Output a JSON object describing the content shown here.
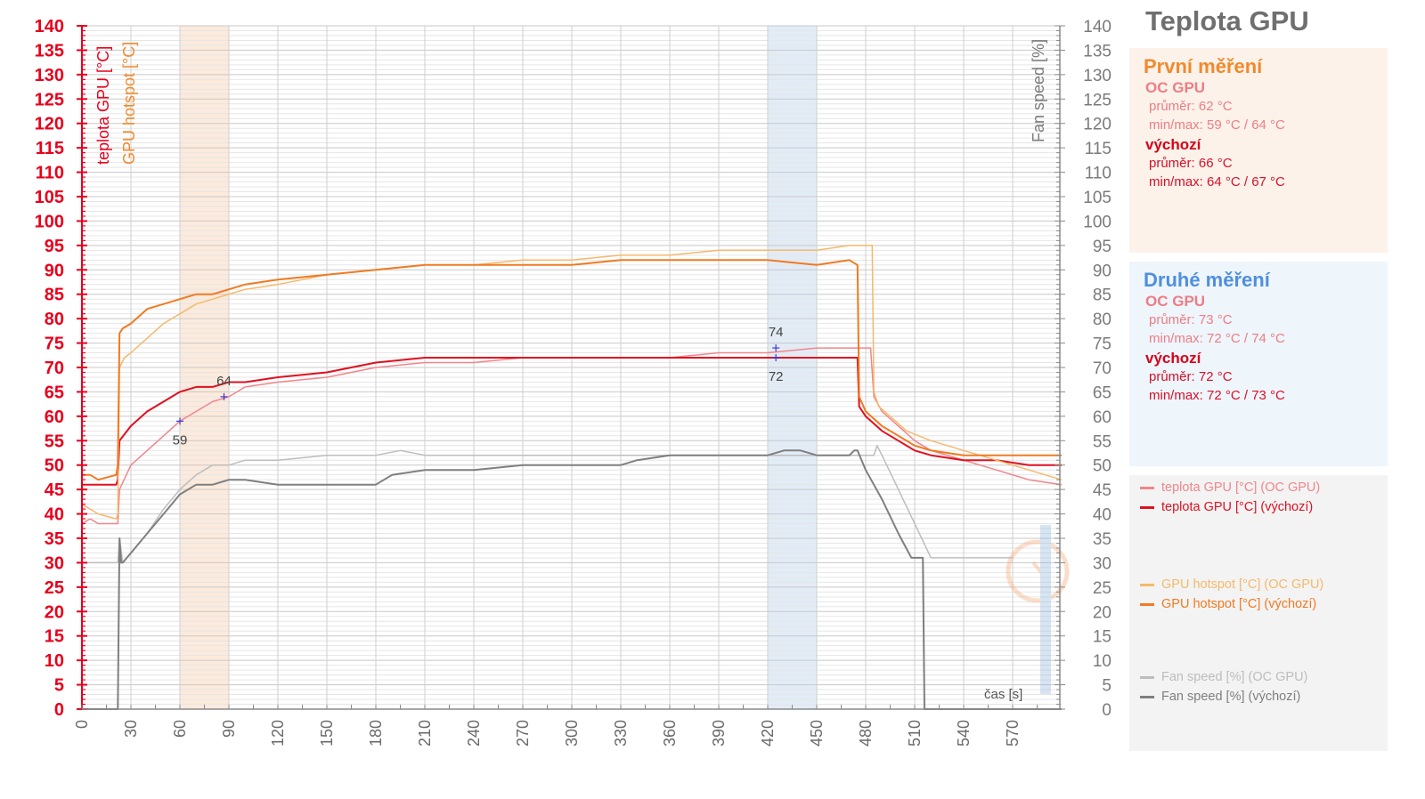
{
  "chart_data": {
    "type": "line",
    "title": "Teplota GPU",
    "xlabel": "čas [s]",
    "ylabel_left": [
      "teplota GPU [°C]",
      "GPU hotspot [°C]"
    ],
    "ylabel_right": "Fan speed [%]",
    "xlim": [
      0,
      600
    ],
    "ylim": [
      0,
      140
    ],
    "x_ticks": [
      0,
      30,
      60,
      90,
      120,
      150,
      180,
      210,
      240,
      270,
      300,
      330,
      360,
      390,
      420,
      450,
      480,
      510,
      540,
      570
    ],
    "y_ticks": [
      0,
      5,
      10,
      15,
      20,
      25,
      30,
      35,
      40,
      45,
      50,
      55,
      60,
      65,
      70,
      75,
      80,
      85,
      90,
      95,
      100,
      105,
      110,
      115,
      120,
      125,
      130,
      135,
      140
    ],
    "grid": true,
    "highlight_ranges": [
      {
        "name": "První měření",
        "x": [
          60,
          90
        ],
        "color": "#fbe6d6"
      },
      {
        "name": "Druhé měření",
        "x": [
          420,
          450
        ],
        "color": "#dde9f6"
      }
    ],
    "annotations": [
      {
        "x": 60,
        "y": 59,
        "text": "59"
      },
      {
        "x": 87,
        "y": 64,
        "text": "64"
      },
      {
        "x": 425,
        "y": 74,
        "text": "74"
      },
      {
        "x": 425,
        "y": 72,
        "text": "72"
      }
    ],
    "series": [
      {
        "name": "teplota GPU [°C] (OC GPU)",
        "color": "#f0868c",
        "width": 1.5,
        "x": [
          0,
          5,
          10,
          21,
          22,
          23,
          30,
          40,
          50,
          60,
          70,
          80,
          90,
          100,
          120,
          150,
          180,
          210,
          240,
          270,
          300,
          330,
          360,
          390,
          420,
          450,
          470,
          480,
          483,
          485,
          490,
          500,
          510,
          520,
          540,
          560,
          580,
          600
        ],
        "y": [
          38,
          39,
          38,
          38,
          38,
          45,
          50,
          53,
          56,
          59,
          61,
          63,
          64,
          66,
          67,
          68,
          70,
          71,
          71,
          72,
          72,
          72,
          72,
          73,
          73,
          74,
          74,
          74,
          74,
          64,
          61,
          58,
          55,
          53,
          51,
          49,
          47,
          46
        ]
      },
      {
        "name": "teplota GPU [°C] (výchozí)",
        "color": "#e01020",
        "width": 2,
        "x": [
          0,
          5,
          10,
          21,
          22,
          23,
          30,
          40,
          50,
          60,
          70,
          80,
          90,
          100,
          120,
          150,
          180,
          210,
          240,
          270,
          300,
          330,
          360,
          390,
          420,
          450,
          470,
          475,
          476,
          480,
          490,
          500,
          510,
          520,
          540,
          560,
          580,
          600
        ],
        "y": [
          46,
          46,
          46,
          46,
          47,
          55,
          58,
          61,
          63,
          65,
          66,
          66,
          67,
          67,
          68,
          69,
          71,
          72,
          72,
          72,
          72,
          72,
          72,
          72,
          72,
          72,
          72,
          72,
          62,
          60,
          57,
          55,
          53,
          52,
          51,
          51,
          50,
          50
        ]
      },
      {
        "name": "GPU hotspot [°C] (OC GPU)",
        "color": "#f5b96a",
        "width": 1.5,
        "x": [
          0,
          5,
          10,
          21,
          22,
          23,
          26,
          30,
          40,
          50,
          60,
          70,
          80,
          90,
          100,
          120,
          150,
          180,
          210,
          240,
          270,
          300,
          330,
          360,
          390,
          420,
          450,
          470,
          484,
          485,
          488,
          495,
          505,
          520,
          540,
          560,
          580,
          600
        ],
        "y": [
          42,
          41,
          40,
          39,
          40,
          70,
          72,
          73,
          76,
          79,
          81,
          83,
          84,
          85,
          86,
          87,
          89,
          90,
          91,
          91,
          92,
          92,
          93,
          93,
          94,
          94,
          94,
          95,
          95,
          65,
          62,
          60,
          57,
          55,
          53,
          51,
          49,
          47
        ]
      },
      {
        "name": "GPU hotspot [°C] (výchozí)",
        "color": "#f07a22",
        "width": 2,
        "x": [
          0,
          5,
          10,
          21,
          22,
          23,
          25,
          30,
          40,
          50,
          60,
          70,
          80,
          90,
          100,
          120,
          150,
          180,
          210,
          240,
          270,
          300,
          330,
          360,
          390,
          420,
          450,
          470,
          475,
          476,
          480,
          490,
          500,
          510,
          520,
          540,
          560,
          580,
          600
        ],
        "y": [
          48,
          48,
          47,
          48,
          50,
          77,
          78,
          79,
          82,
          83,
          84,
          85,
          85,
          86,
          87,
          88,
          89,
          90,
          91,
          91,
          91,
          91,
          92,
          92,
          92,
          92,
          91,
          92,
          91,
          64,
          61,
          58,
          56,
          54,
          53,
          52,
          52,
          52,
          52
        ]
      },
      {
        "name": "Fan speed [%] (OC GPU)",
        "color": "#bdbdbd",
        "width": 1.5,
        "x": [
          0,
          22,
          23,
          25,
          30,
          40,
          50,
          60,
          70,
          80,
          90,
          100,
          120,
          150,
          180,
          195,
          210,
          240,
          270,
          300,
          330,
          360,
          390,
          420,
          450,
          470,
          485,
          487,
          490,
          500,
          510,
          520,
          530,
          540,
          560,
          570
        ],
        "y": [
          30,
          30,
          35,
          30,
          32,
          36,
          41,
          45,
          48,
          50,
          50,
          51,
          51,
          52,
          52,
          53,
          52,
          52,
          52,
          52,
          52,
          52,
          52,
          52,
          52,
          52,
          52,
          54,
          52,
          45,
          38,
          31,
          31,
          31,
          31,
          31
        ]
      },
      {
        "name": "Fan speed [%] (výchozí)",
        "color": "#7f7f7f",
        "width": 2,
        "x": [
          0,
          22,
          23,
          24,
          25,
          30,
          40,
          50,
          60,
          70,
          80,
          90,
          100,
          120,
          150,
          180,
          190,
          210,
          240,
          270,
          300,
          330,
          340,
          360,
          390,
          420,
          430,
          440,
          450,
          470,
          473,
          475,
          480,
          490,
          500,
          508,
          515,
          516,
          600
        ],
        "y": [
          0,
          0,
          35,
          30,
          30,
          32,
          36,
          40,
          44,
          46,
          46,
          47,
          47,
          46,
          46,
          46,
          48,
          49,
          49,
          50,
          50,
          50,
          51,
          52,
          52,
          52,
          53,
          53,
          52,
          52,
          53,
          53,
          49,
          43,
          36,
          31,
          31,
          0,
          0
        ]
      }
    ]
  },
  "sidebar": {
    "title": "Teplota GPU",
    "first": {
      "heading": "První měření",
      "oc": {
        "name": "OC GPU",
        "avg": "průměr: 62 °C",
        "minmax": "min/max: 59 °C / 64 °C"
      },
      "def": {
        "name": "výchozí",
        "avg": "průměr: 66  °C",
        "minmax": "min/max: 64  °C / 67  °C"
      }
    },
    "second": {
      "heading": "Druhé měření",
      "oc": {
        "name": "OC GPU",
        "avg": "průměr: 73 °C",
        "minmax": "min/max: 72 °C / 74 °C"
      },
      "def": {
        "name": "výchozí",
        "avg": "průměr: 72  °C",
        "minmax": "min/max: 72  °C / 73  °C"
      }
    },
    "legend": [
      {
        "label": "teplota GPU [°C] (OC GPU)",
        "color": "#f0868c"
      },
      {
        "label": "teplota GPU [°C] (výchozí)",
        "color": "#e01020"
      },
      {
        "label": "GPU hotspot [°C] (OC GPU)",
        "color": "#f5b96a"
      },
      {
        "label": "GPU hotspot [°C] (výchozí)",
        "color": "#f07a22"
      },
      {
        "label": "Fan speed [%] (OC GPU)",
        "color": "#bdbdbd"
      },
      {
        "label": "Fan speed [%] (výchozí)",
        "color": "#7f7f7f"
      }
    ]
  },
  "colors": {
    "left_axis": "#e8001c",
    "right_axis": "#7a7a7a",
    "hotspot_label": "#f08a2c"
  }
}
